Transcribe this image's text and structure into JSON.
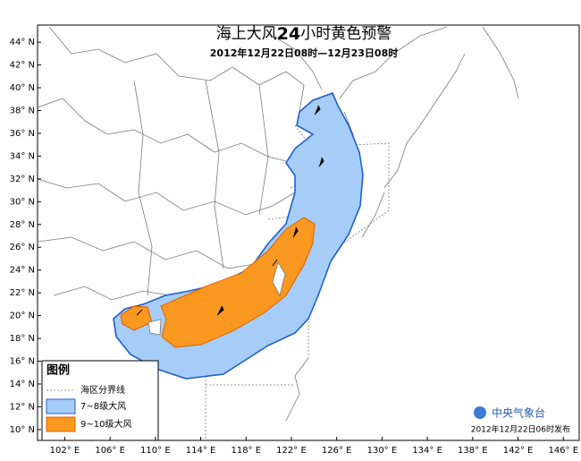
{
  "map": {
    "title_main": "海上大风",
    "title_hours": "24",
    "title_rest": "小时黄色预警",
    "subtitle": "2012年12月22日08时—12月23日08时",
    "lonlim": [
      99.6,
      147.4
    ],
    "latlim": [
      9.05,
      45.5
    ],
    "lonticks": [
      {
        "value": 102,
        "label": "102° E"
      },
      {
        "value": 106,
        "label": "106° E"
      },
      {
        "value": 110,
        "label": "110° E"
      },
      {
        "value": 114,
        "label": "114° E"
      },
      {
        "value": 118,
        "label": "118° E"
      },
      {
        "value": 122,
        "label": "122° E"
      },
      {
        "value": 126,
        "label": "126° E"
      },
      {
        "value": 130,
        "label": "130° E"
      },
      {
        "value": 134,
        "label": "134° E"
      },
      {
        "value": 138,
        "label": "138° E"
      },
      {
        "value": 142,
        "label": "142° E"
      },
      {
        "value": 146,
        "label": "146° E"
      }
    ],
    "latticks": [
      {
        "value": 44,
        "label": "44° N"
      },
      {
        "value": 42,
        "label": "42° N"
      },
      {
        "value": 40,
        "label": "40° N"
      },
      {
        "value": 38,
        "label": "38° N"
      },
      {
        "value": 36,
        "label": "36° N"
      },
      {
        "value": 34,
        "label": "34° N"
      },
      {
        "value": 32,
        "label": "32° N"
      },
      {
        "value": 30,
        "label": "30° N"
      },
      {
        "value": 28,
        "label": "28° N"
      },
      {
        "value": 26,
        "label": "26° N"
      },
      {
        "value": 24,
        "label": "24° N"
      },
      {
        "value": 22,
        "label": "22° N"
      },
      {
        "value": 20,
        "label": "20° N"
      },
      {
        "value": 18,
        "label": "18° N"
      },
      {
        "value": 16,
        "label": "16° N"
      },
      {
        "value": 14,
        "label": "14° N"
      },
      {
        "value": 12,
        "label": "12° N"
      },
      {
        "value": 10,
        "label": "10° N"
      }
    ],
    "legend": {
      "title": "图例",
      "items": [
        {
          "label": "海区分界线"
        },
        {
          "label": "7~8级大风",
          "color": "#a6cdf7"
        },
        {
          "label": "9~10级大风",
          "color": "#fb9820"
        }
      ]
    },
    "issuer": "中央气象台",
    "issued": "2012年12月22日06时发布"
  }
}
